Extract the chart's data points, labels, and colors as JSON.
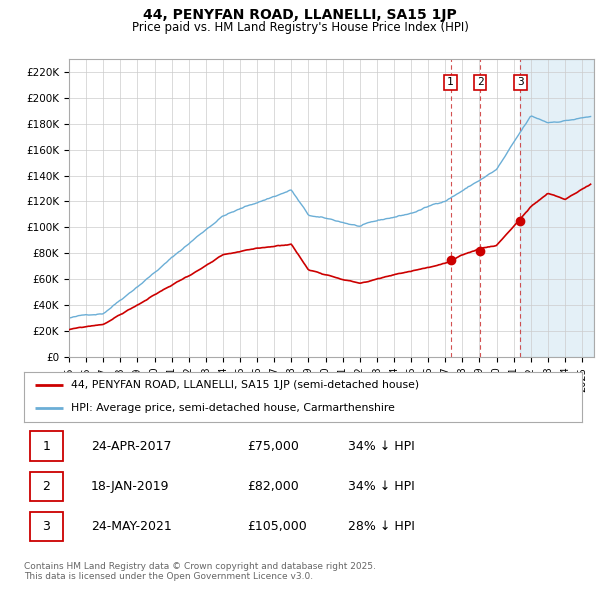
{
  "title": "44, PENYFAN ROAD, LLANELLI, SA15 1JP",
  "subtitle": "Price paid vs. HM Land Registry's House Price Index (HPI)",
  "ylim": [
    0,
    230000
  ],
  "yticks": [
    0,
    20000,
    40000,
    60000,
    80000,
    100000,
    120000,
    140000,
    160000,
    180000,
    200000,
    220000
  ],
  "ytick_labels": [
    "£0",
    "£20K",
    "£40K",
    "£60K",
    "£80K",
    "£100K",
    "£120K",
    "£140K",
    "£160K",
    "£180K",
    "£200K",
    "£220K"
  ],
  "hpi_color": "#6baed6",
  "hpi_fill_color": "#d9eaf7",
  "price_color": "#cc0000",
  "vline1_color": "#bbbbbb",
  "vline2_color": "#cc0000",
  "sale_decimal": [
    2017.31,
    2019.05,
    2021.4
  ],
  "sale_prices": [
    75000,
    82000,
    105000
  ],
  "sale_labels": [
    "1",
    "2",
    "3"
  ],
  "legend_price_label": "44, PENYFAN ROAD, LLANELLI, SA15 1JP (semi-detached house)",
  "legend_hpi_label": "HPI: Average price, semi-detached house, Carmarthenshire",
  "table_data": [
    [
      "1",
      "24-APR-2017",
      "£75,000",
      "34% ↓ HPI"
    ],
    [
      "2",
      "18-JAN-2019",
      "£82,000",
      "34% ↓ HPI"
    ],
    [
      "3",
      "24-MAY-2021",
      "£105,000",
      "28% ↓ HPI"
    ]
  ],
  "footnote": "Contains HM Land Registry data © Crown copyright and database right 2025.\nThis data is licensed under the Open Government Licence v3.0.",
  "background_color": "#ffffff",
  "grid_color": "#cccccc"
}
